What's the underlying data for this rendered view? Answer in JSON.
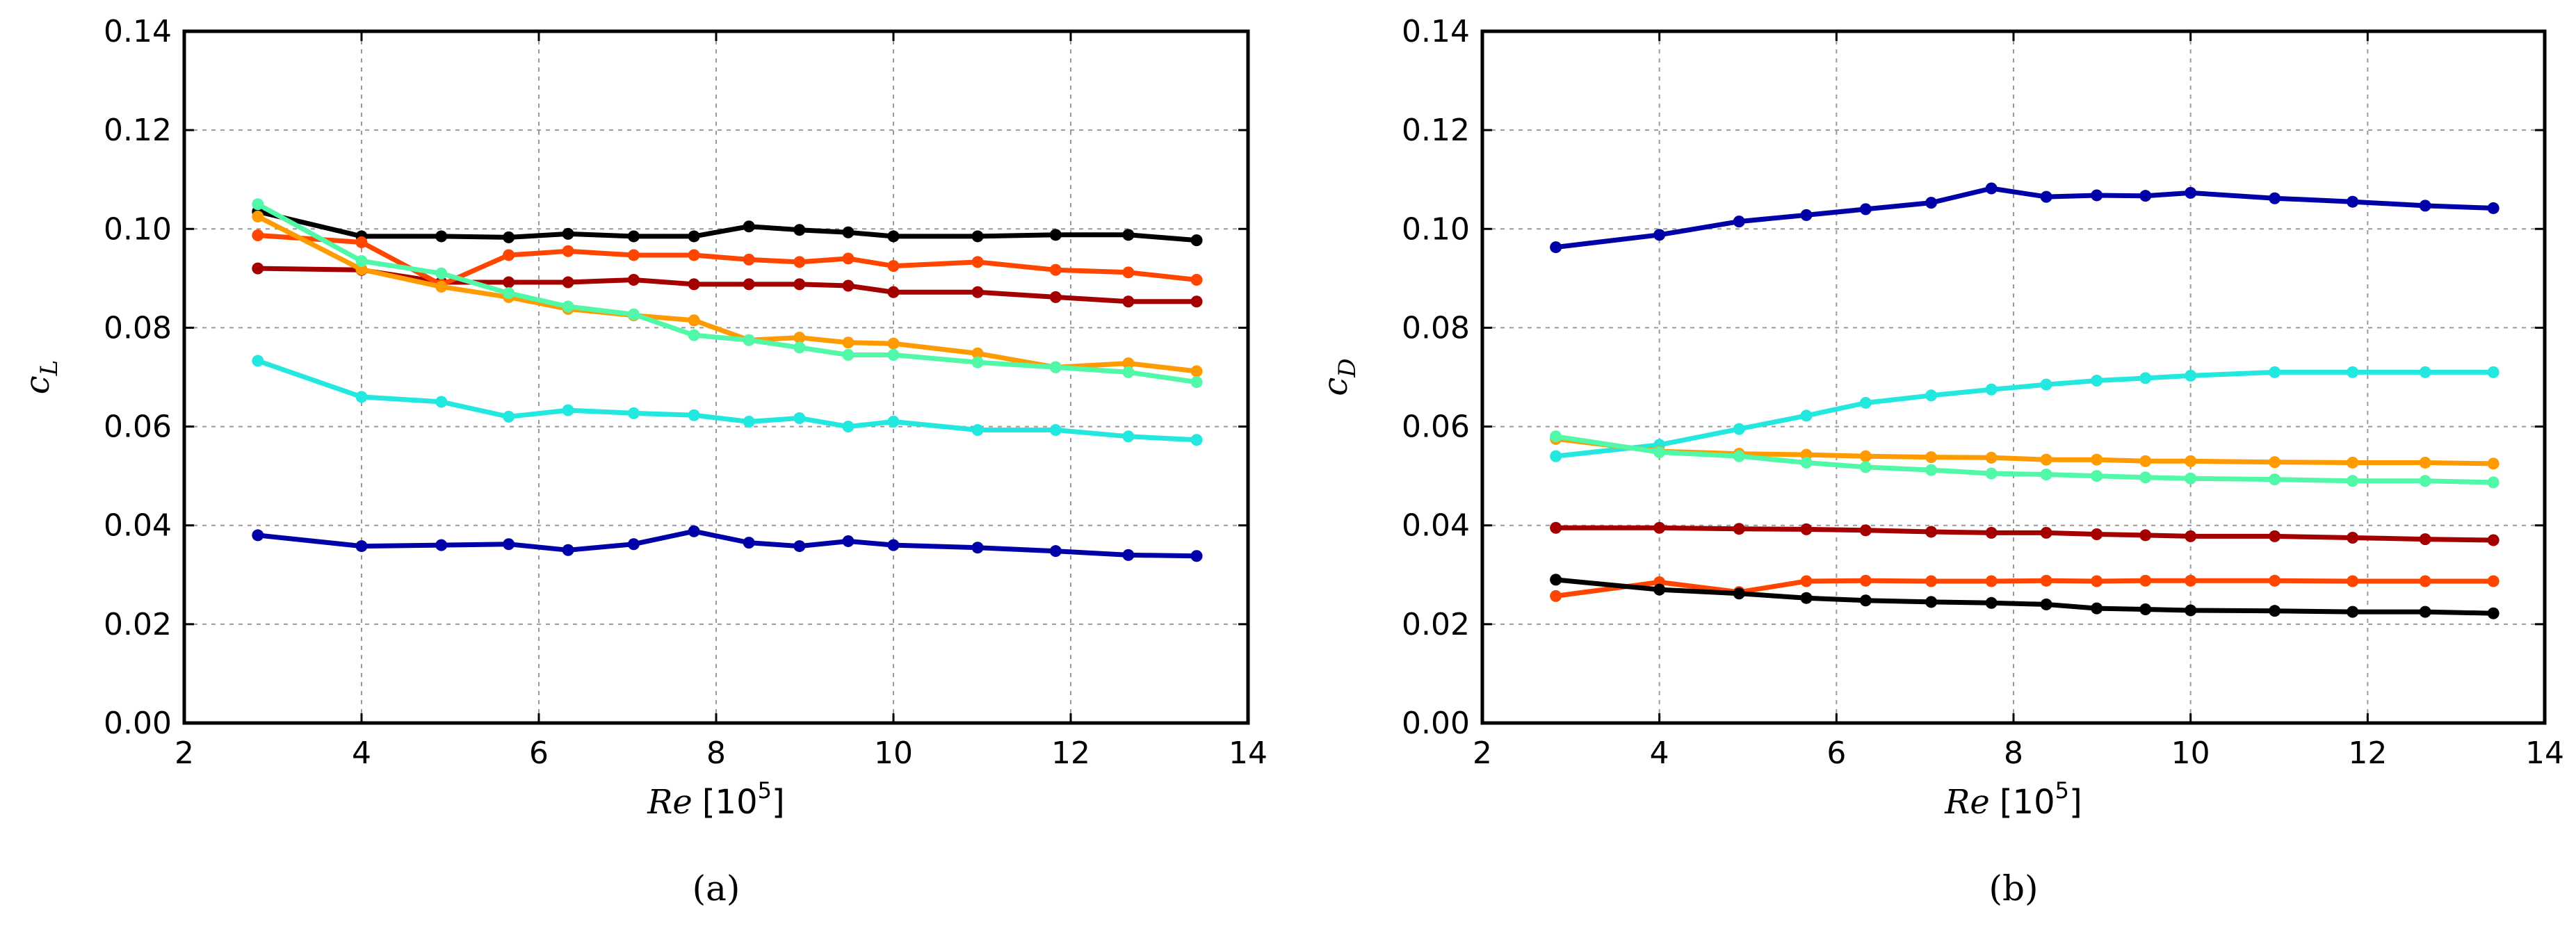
{
  "chart_data": [
    {
      "type": "line",
      "panel": "a",
      "caption": "(a)",
      "xlabel_var": "Re",
      "xlabel_unit_base": "[10",
      "xlabel_unit_exp": "5",
      "xlabel_unit_close": "]",
      "ylabel_base": "c",
      "ylabel_sub": "L",
      "xlim": [
        2,
        14
      ],
      "ylim": [
        0,
        0.14
      ],
      "xticks": [
        2,
        4,
        6,
        8,
        10,
        12,
        14
      ],
      "xtick_labels": [
        "2",
        "4",
        "6",
        "8",
        "10",
        "12",
        "14"
      ],
      "yticks": [
        0,
        0.02,
        0.04,
        0.06,
        0.08,
        0.1,
        0.12,
        0.14
      ],
      "ytick_labels": [
        "0.00",
        "0.02",
        "0.04",
        "0.06",
        "0.08",
        "0.10",
        "0.12",
        "0.14"
      ],
      "grid": true,
      "x": [
        2.83,
        4.0,
        4.9,
        5.66,
        6.33,
        7.07,
        7.75,
        8.37,
        8.94,
        9.49,
        10.0,
        10.95,
        11.83,
        12.65,
        13.42
      ],
      "series": [
        {
          "name": "black",
          "color": "#000000",
          "values": [
            0.1035,
            0.0985,
            0.0985,
            0.0983,
            0.099,
            0.0985,
            0.0985,
            0.1005,
            0.0998,
            0.0993,
            0.0985,
            0.0985,
            0.0988,
            0.0988,
            0.0977
          ]
        },
        {
          "name": "dark red",
          "color": "#a50000",
          "values": [
            0.092,
            0.0917,
            0.0892,
            0.0892,
            0.0892,
            0.0897,
            0.0888,
            0.0888,
            0.0888,
            0.0885,
            0.0872,
            0.0872,
            0.0862,
            0.0853,
            0.0853
          ]
        },
        {
          "name": "red-orange",
          "color": "#ff4500",
          "values": [
            0.0987,
            0.0973,
            0.0887,
            0.0947,
            0.0955,
            0.0947,
            0.0947,
            0.0938,
            0.0933,
            0.094,
            0.0925,
            0.0933,
            0.0917,
            0.0912,
            0.0897
          ]
        },
        {
          "name": "orange",
          "color": "#ff9a00",
          "values": [
            0.1025,
            0.0918,
            0.0883,
            0.0862,
            0.0838,
            0.0825,
            0.0815,
            0.0775,
            0.078,
            0.077,
            0.0768,
            0.0748,
            0.072,
            0.0728,
            0.0712
          ]
        },
        {
          "name": "aquamarine",
          "color": "#50f8a8",
          "values": [
            0.105,
            0.0935,
            0.091,
            0.087,
            0.0843,
            0.0827,
            0.0785,
            0.0775,
            0.076,
            0.0745,
            0.0745,
            0.073,
            0.072,
            0.071,
            0.069
          ]
        },
        {
          "name": "cyan",
          "color": "#22e8e0",
          "values": [
            0.0733,
            0.066,
            0.065,
            0.062,
            0.0633,
            0.0627,
            0.0623,
            0.061,
            0.0617,
            0.06,
            0.061,
            0.0593,
            0.0593,
            0.058,
            0.0573
          ]
        },
        {
          "name": "navy",
          "color": "#0000a8",
          "values": [
            0.038,
            0.0358,
            0.036,
            0.0362,
            0.035,
            0.0362,
            0.0388,
            0.0365,
            0.0358,
            0.0368,
            0.036,
            0.0355,
            0.0348,
            0.034,
            0.0338
          ]
        }
      ]
    },
    {
      "type": "line",
      "panel": "b",
      "caption": "(b)",
      "xlabel_var": "Re",
      "xlabel_unit_base": "[10",
      "xlabel_unit_exp": "5",
      "xlabel_unit_close": "]",
      "ylabel_base": "c",
      "ylabel_sub": "D",
      "xlim": [
        2,
        14
      ],
      "ylim": [
        0,
        0.14
      ],
      "xticks": [
        2,
        4,
        6,
        8,
        10,
        12,
        14
      ],
      "xtick_labels": [
        "2",
        "4",
        "6",
        "8",
        "10",
        "12",
        "14"
      ],
      "yticks": [
        0,
        0.02,
        0.04,
        0.06,
        0.08,
        0.1,
        0.12,
        0.14
      ],
      "ytick_labels": [
        "0.00",
        "0.02",
        "0.04",
        "0.06",
        "0.08",
        "0.10",
        "0.12",
        "0.14"
      ],
      "grid": true,
      "x": [
        2.83,
        4.0,
        4.9,
        5.66,
        6.33,
        7.07,
        7.75,
        8.37,
        8.94,
        9.49,
        10.0,
        10.95,
        11.83,
        12.65,
        13.42
      ],
      "series": [
        {
          "name": "navy",
          "color": "#0000a8",
          "values": [
            0.0963,
            0.0988,
            0.1015,
            0.1028,
            0.104,
            0.1053,
            0.1082,
            0.1065,
            0.1068,
            0.1067,
            0.1073,
            0.1062,
            0.1055,
            0.1047,
            0.1042
          ]
        },
        {
          "name": "cyan",
          "color": "#22e8e0",
          "values": [
            0.054,
            0.0563,
            0.0595,
            0.0622,
            0.0648,
            0.0663,
            0.0675,
            0.0685,
            0.0693,
            0.0698,
            0.0703,
            0.071,
            0.071,
            0.071,
            0.071
          ]
        },
        {
          "name": "orange",
          "color": "#ff9a00",
          "values": [
            0.0575,
            0.055,
            0.0545,
            0.0543,
            0.054,
            0.0538,
            0.0537,
            0.0533,
            0.0533,
            0.053,
            0.053,
            0.0528,
            0.0527,
            0.0527,
            0.0525
          ]
        },
        {
          "name": "aquamarine",
          "color": "#50f8a8",
          "values": [
            0.058,
            0.0548,
            0.054,
            0.0527,
            0.0518,
            0.0512,
            0.0505,
            0.0503,
            0.05,
            0.0497,
            0.0495,
            0.0493,
            0.049,
            0.049,
            0.0487
          ]
        },
        {
          "name": "dark red",
          "color": "#a50000",
          "values": [
            0.0395,
            0.0395,
            0.0393,
            0.0392,
            0.039,
            0.0387,
            0.0385,
            0.0385,
            0.0382,
            0.038,
            0.0378,
            0.0378,
            0.0375,
            0.0372,
            0.037
          ]
        },
        {
          "name": "red-orange",
          "color": "#ff4500",
          "values": [
            0.0257,
            0.0285,
            0.0265,
            0.0287,
            0.0288,
            0.0287,
            0.0287,
            0.0288,
            0.0287,
            0.0288,
            0.0288,
            0.0288,
            0.0287,
            0.0287,
            0.0287
          ]
        },
        {
          "name": "black",
          "color": "#000000",
          "values": [
            0.029,
            0.027,
            0.0262,
            0.0253,
            0.0248,
            0.0245,
            0.0243,
            0.024,
            0.0232,
            0.023,
            0.0228,
            0.0227,
            0.0225,
            0.0225,
            0.0222
          ]
        }
      ]
    }
  ]
}
